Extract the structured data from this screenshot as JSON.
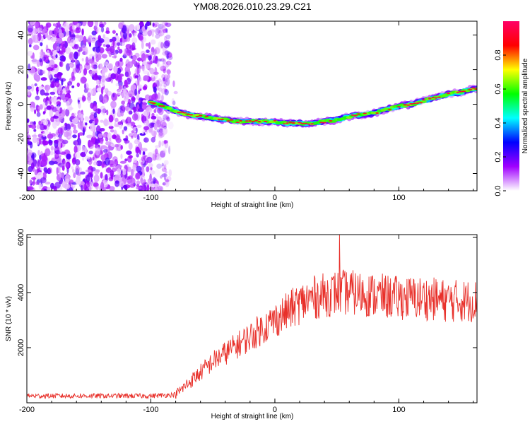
{
  "figure_title": "YM08.2026.010.23.29.C21",
  "chart_data": [
    {
      "type": "heatmap",
      "name": "spectrogram",
      "xlabel": "Height of straight line (km)",
      "ylabel": "Frequency (Hz)",
      "xlim": [
        -200,
        163
      ],
      "ylim": [
        -50,
        48
      ],
      "xticks": [
        -200,
        -100,
        0,
        100
      ],
      "yticks": [
        -40,
        -20,
        0,
        20,
        40
      ],
      "noise_region_x": [
        -200,
        -85
      ],
      "trace": {
        "x": [
          -100,
          -90,
          -80,
          -70,
          -60,
          -50,
          -40,
          -30,
          -20,
          -10,
          0,
          10,
          20,
          30,
          40,
          50,
          60,
          70,
          80,
          90,
          100,
          110,
          120,
          130,
          140,
          150,
          160,
          163
        ],
        "y": [
          1,
          -1,
          -4,
          -6,
          -7,
          -8,
          -9,
          -10,
          -10,
          -10,
          -10,
          -11,
          -11,
          -11,
          -10,
          -9,
          -7,
          -6,
          -5,
          -3,
          -1,
          0,
          2,
          4,
          6,
          7,
          9,
          9
        ]
      },
      "colorbar": {
        "label": "Normalized spectral amplitude",
        "range": [
          0.0,
          1.0
        ],
        "ticks": [
          "0.0",
          "0.2",
          "0.4",
          "0.6",
          "0.8"
        ],
        "colors": [
          "#ffffff",
          "#a000ff",
          "#0000ff",
          "#00ffff",
          "#00ff00",
          "#ffff00",
          "#ff0000",
          "#ff0066"
        ]
      }
    },
    {
      "type": "line",
      "name": "snr",
      "xlabel": "Height of straight line (km)",
      "ylabel": "SNR (10 * v/v)",
      "xlim": [
        -200,
        163
      ],
      "ylim": [
        0,
        6100
      ],
      "xticks": [
        -200,
        -100,
        0,
        100
      ],
      "yticks": [
        2000,
        4000,
        6000
      ],
      "color": "#e8302a",
      "envelope": {
        "x": [
          -200,
          -150,
          -100,
          -80,
          -70,
          -60,
          -50,
          -40,
          -30,
          -20,
          -10,
          0,
          10,
          20,
          30,
          40,
          50,
          60,
          80,
          100,
          120,
          140,
          163
        ],
        "y": [
          250,
          250,
          250,
          300,
          700,
          1100,
          1500,
          1800,
          2100,
          2400,
          2700,
          3000,
          3300,
          3600,
          3800,
          3900,
          4000,
          4000,
          3900,
          3800,
          3800,
          3700,
          3700
        ]
      },
      "peak": {
        "x": 52,
        "y": 6100
      }
    }
  ]
}
